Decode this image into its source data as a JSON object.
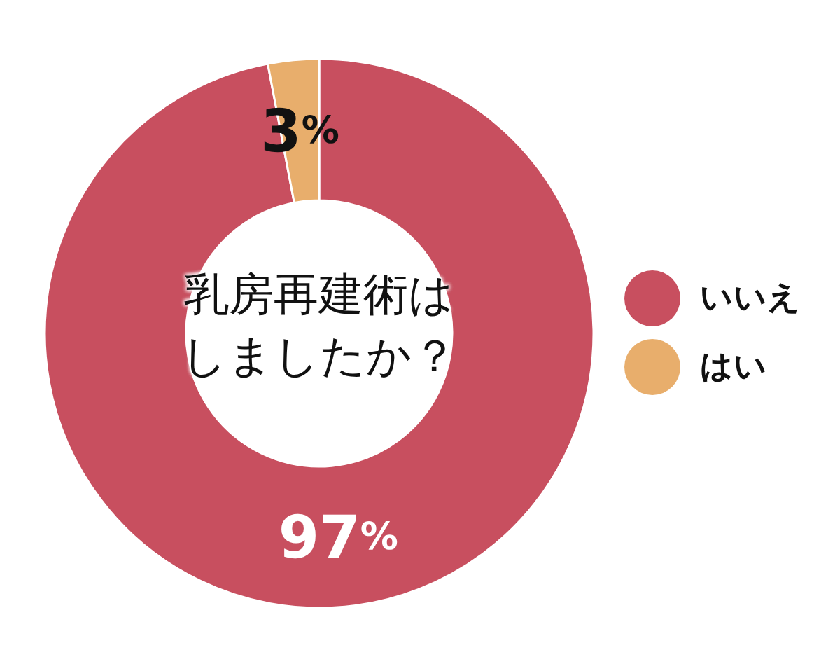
{
  "chart_data": {
    "type": "donut",
    "title": "乳房再建術はしましたか？",
    "categories": [
      "いいえ",
      "はい"
    ],
    "values": [
      97,
      3
    ],
    "colors": [
      "#c84f5f",
      "#e8ae6c"
    ],
    "value_labels": [
      "97%",
      "3%"
    ],
    "legend": "right"
  }
}
